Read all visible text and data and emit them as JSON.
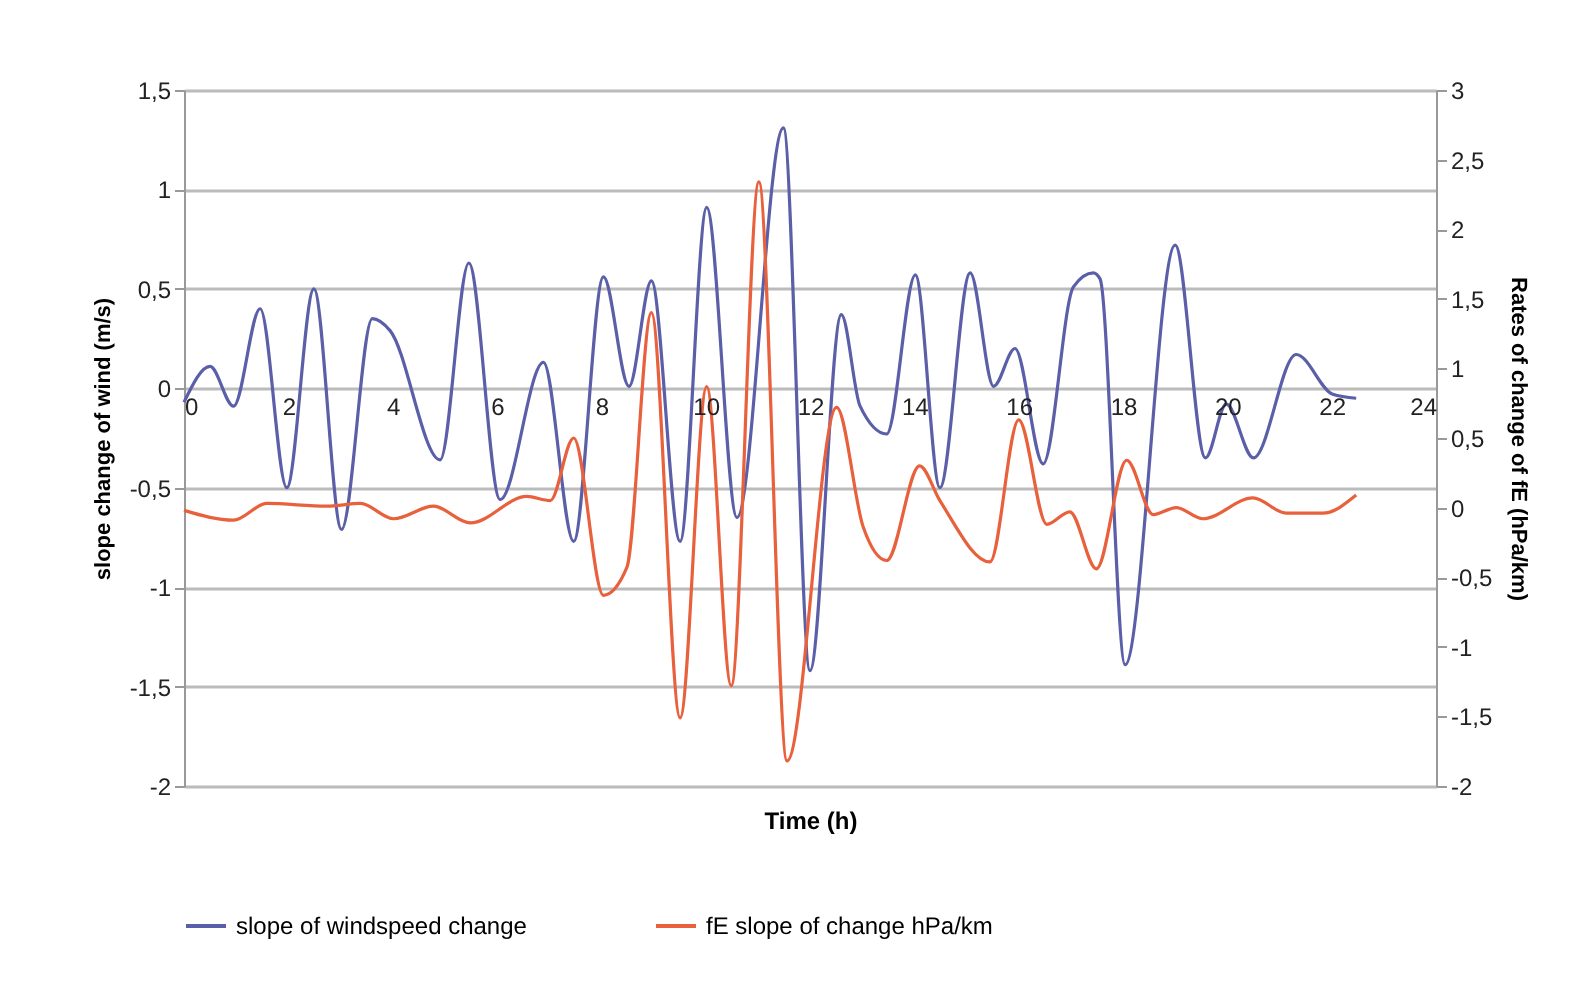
{
  "chart_data": {
    "type": "line",
    "xlabel": "Time (h)",
    "ylabel": "slope change of wind (m/s)",
    "y2label": "Rates of change of fE (hPa/km)",
    "xlim": [
      0,
      24
    ],
    "xticks": [
      0,
      2,
      4,
      6,
      8,
      10,
      12,
      14,
      16,
      18,
      20,
      22,
      24
    ],
    "ylim": [
      -2,
      1.5
    ],
    "yticks": [
      {
        "value": -2,
        "label": "-2"
      },
      {
        "value": -1.5,
        "label": "-1,5"
      },
      {
        "value": -1,
        "label": "-1"
      },
      {
        "value": -0.5,
        "label": "-0,5"
      },
      {
        "value": 0,
        "label": "0"
      },
      {
        "value": 0.5,
        "label": "0,5"
      },
      {
        "value": 1,
        "label": "1"
      },
      {
        "value": 1.5,
        "label": "1,5"
      }
    ],
    "y2lim": [
      -2,
      3
    ],
    "y2ticks": [
      {
        "value": -2,
        "label": "-2"
      },
      {
        "value": -1.5,
        "label": "-1,5"
      },
      {
        "value": -1,
        "label": "-1"
      },
      {
        "value": -0.5,
        "label": "-0,5"
      },
      {
        "value": 0,
        "label": "0"
      },
      {
        "value": 0.5,
        "label": "0,5"
      },
      {
        "value": 1,
        "label": "1"
      },
      {
        "value": 1.5,
        "label": "1,5"
      },
      {
        "value": 2,
        "label": "2"
      },
      {
        "value": 2.5,
        "label": "2,5"
      },
      {
        "value": 3,
        "label": "3"
      }
    ],
    "grid": "y",
    "legend": "bottom",
    "marker": "none",
    "line_style": "solid",
    "series": [
      {
        "name": "slope of windspeed change",
        "color": "#5a5fa8",
        "x": [
          0,
          0.5,
          0.95,
          1.46,
          1.97,
          2.49,
          3.02,
          3.61,
          3.95,
          4.91,
          5.46,
          6.06,
          6.89,
          7.47,
          8.04,
          8.53,
          8.96,
          9.51,
          10.02,
          10.6,
          11.49,
          12.0,
          12.6,
          12.96,
          13.47,
          14.02,
          14.49,
          15.07,
          15.52,
          15.93,
          16.47,
          17.05,
          17.43,
          17.56,
          18.04,
          19.0,
          19.58,
          19.98,
          20.5,
          21.32,
          22.02,
          22.47
        ],
        "values": [
          -0.07,
          0.11,
          -0.09,
          0.4,
          -0.5,
          0.5,
          -0.71,
          0.35,
          0.29,
          -0.36,
          0.63,
          -0.56,
          0.13,
          -0.77,
          0.56,
          0.01,
          0.54,
          -0.77,
          0.91,
          -0.65,
          1.31,
          -1.42,
          0.37,
          -0.09,
          -0.23,
          0.57,
          -0.5,
          0.58,
          0.01,
          0.2,
          -0.38,
          0.51,
          0.58,
          0.55,
          -1.39,
          0.72,
          -0.35,
          -0.08,
          -0.35,
          0.17,
          -0.03,
          -0.05
        ]
      },
      {
        "name": "fE slope of change hPa/km",
        "color": "#e8603c",
        "axis": "y2",
        "x": [
          0,
          0.95,
          1.59,
          2.74,
          3.38,
          4.02,
          4.78,
          5.49,
          6.57,
          7.02,
          7.47,
          8.04,
          8.49,
          8.96,
          9.51,
          10.02,
          10.49,
          11.02,
          11.56,
          12.51,
          13.02,
          13.47,
          14.1,
          14.49,
          15.45,
          16.0,
          16.54,
          16.98,
          17.49,
          18.07,
          18.58,
          19.02,
          19.53,
          20.49,
          21.13,
          21.83,
          22.47
        ],
        "values": [
          -0.02,
          -0.09,
          0.03,
          0.01,
          0.03,
          -0.08,
          0.01,
          -0.11,
          0.08,
          0.05,
          0.5,
          -0.63,
          -0.43,
          1.4,
          -1.51,
          0.87,
          -1.28,
          2.34,
          -1.82,
          0.72,
          -0.14,
          -0.38,
          0.3,
          0.05,
          -0.39,
          0.63,
          -0.12,
          -0.03,
          -0.44,
          0.34,
          -0.05,
          0.0,
          -0.08,
          0.07,
          -0.04,
          -0.04,
          0.09
        ]
      }
    ]
  }
}
